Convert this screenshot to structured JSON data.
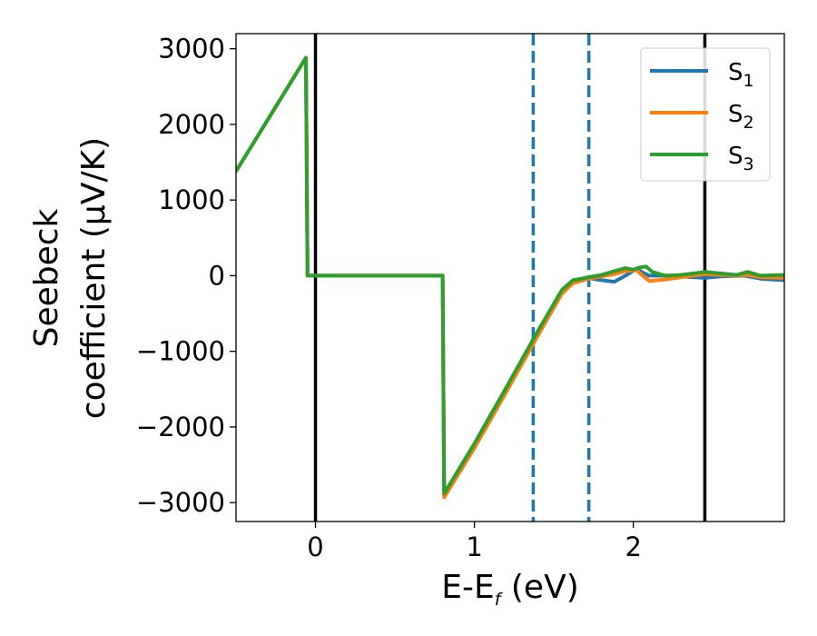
{
  "chart_data": {
    "type": "line",
    "xlabel": {
      "main": "E-E",
      "sub": "f",
      "suffix": " (eV)"
    },
    "ylabel": {
      "line1": "Seebeck",
      "line2": "coefficient  (μV/K)"
    },
    "xlim": [
      -0.5,
      2.95
    ],
    "ylim": [
      -3250,
      3200
    ],
    "x_ticks": [
      0,
      1,
      2
    ],
    "x_tick_labels": [
      "0",
      "1",
      "2"
    ],
    "y_ticks": [
      3000,
      2000,
      1000,
      0,
      -1000,
      -2000,
      -3000
    ],
    "y_tick_labels": [
      "3000",
      "2000",
      "1000",
      "0",
      "−1000",
      "−2000",
      "−3000"
    ],
    "grid": false,
    "legend_position": "top-right",
    "vertical_lines": [
      {
        "x": 0.0,
        "style": "solid",
        "color": "#000000"
      },
      {
        "x": 2.45,
        "style": "solid",
        "color": "#000000"
      },
      {
        "x": 1.37,
        "style": "dashed",
        "color": "#1f77b4"
      },
      {
        "x": 1.72,
        "style": "dashed",
        "color": "#1f77b4"
      }
    ],
    "series": [
      {
        "name": "S1",
        "label_main": "S",
        "label_sub": "1",
        "color": "#1f77b4",
        "x": [
          -0.5,
          -0.06,
          -0.05,
          0.8,
          0.81,
          1.0,
          1.2,
          1.4,
          1.55,
          1.62,
          1.72,
          1.8,
          1.88,
          1.95,
          2.02,
          2.06,
          2.1,
          2.2,
          2.3,
          2.45,
          2.55,
          2.7,
          2.8,
          2.95
        ],
        "y": [
          1380,
          2880,
          0,
          0,
          -2900,
          -2250,
          -1500,
          -750,
          -200,
          -70,
          -30,
          -60,
          -80,
          0,
          90,
          40,
          0,
          0,
          -10,
          -30,
          -10,
          0,
          -40,
          -60
        ]
      },
      {
        "name": "S2",
        "label_main": "S",
        "label_sub": "2",
        "color": "#ff7f0e",
        "x": [
          -0.5,
          -0.06,
          -0.05,
          0.8,
          0.81,
          1.0,
          1.2,
          1.4,
          1.55,
          1.62,
          1.72,
          1.8,
          1.88,
          1.95,
          2.02,
          2.06,
          2.1,
          2.2,
          2.3,
          2.45,
          2.55,
          2.65,
          2.72,
          2.8,
          2.95
        ],
        "y": [
          1380,
          2880,
          0,
          0,
          -2930,
          -2280,
          -1540,
          -790,
          -240,
          -100,
          -40,
          -10,
          20,
          60,
          70,
          0,
          -70,
          -50,
          -20,
          20,
          10,
          0,
          10,
          -20,
          -30
        ]
      },
      {
        "name": "S3",
        "label_main": "S",
        "label_sub": "3",
        "color": "#2ca02c",
        "x": [
          -0.5,
          -0.06,
          -0.05,
          0.8,
          0.81,
          1.0,
          1.2,
          1.4,
          1.55,
          1.62,
          1.72,
          1.8,
          1.88,
          1.95,
          2.0,
          2.04,
          2.08,
          2.12,
          2.2,
          2.3,
          2.45,
          2.55,
          2.65,
          2.72,
          2.8,
          2.95
        ],
        "y": [
          1380,
          2880,
          0,
          0,
          -2880,
          -2220,
          -1480,
          -730,
          -190,
          -60,
          -20,
          10,
          60,
          100,
          80,
          110,
          120,
          50,
          0,
          10,
          50,
          30,
          10,
          50,
          0,
          10
        ]
      }
    ]
  }
}
